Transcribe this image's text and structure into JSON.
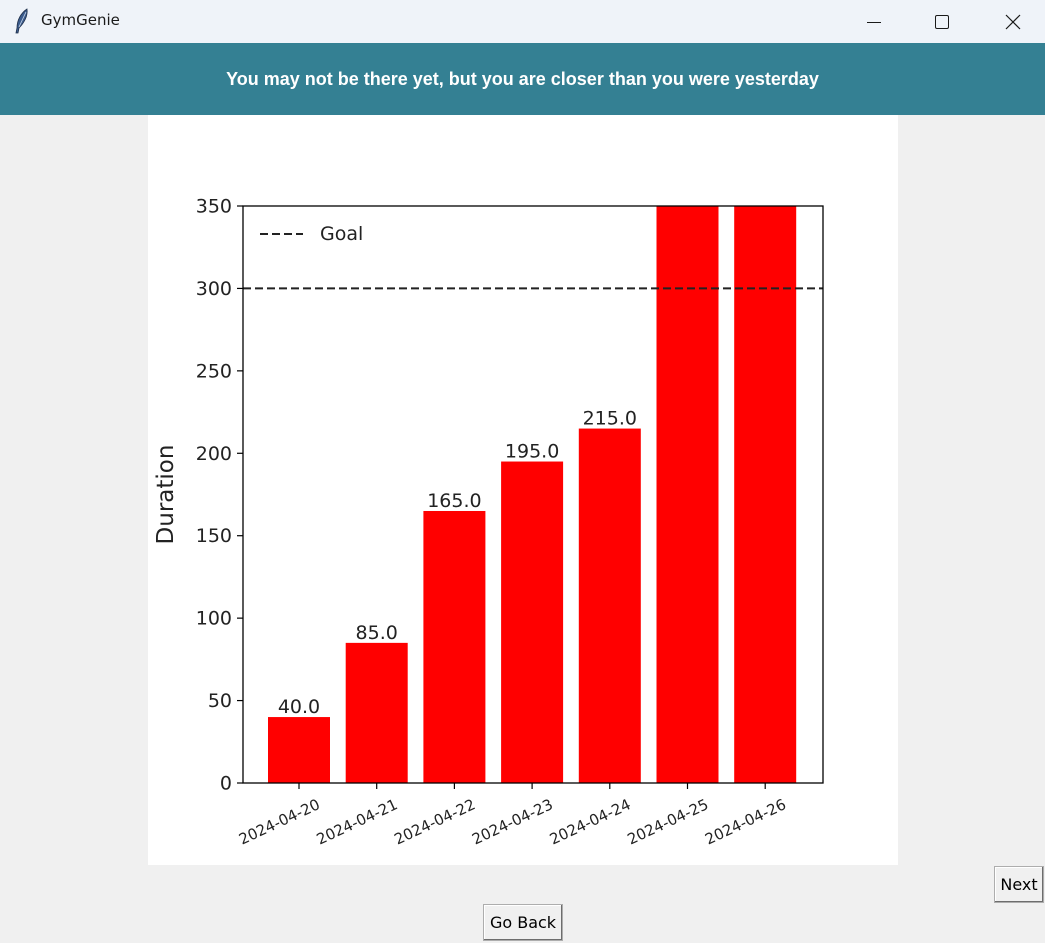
{
  "window": {
    "title": "GymGenie",
    "icon": "feather-icon",
    "controls": [
      "minimize-icon",
      "maximize-icon",
      "close-icon"
    ]
  },
  "banner": {
    "text": "You may not be there yet, but you are closer than you were yesterday",
    "background": "#348093"
  },
  "chart_data": {
    "type": "bar",
    "categories": [
      "2024-04-20",
      "2024-04-21",
      "2024-04-22",
      "2024-04-23",
      "2024-04-24",
      "2024-04-25",
      "2024-04-26"
    ],
    "values": [
      40.0,
      85.0,
      165.0,
      195.0,
      215.0,
      350,
      350
    ],
    "data_labels": [
      "40.0",
      "85.0",
      "165.0",
      "195.0",
      "215.0",
      "",
      ""
    ],
    "ylabel": "Duration",
    "xlabel": "",
    "ylim": [
      0,
      350
    ],
    "yticks": [
      0,
      50,
      100,
      150,
      200,
      250,
      300,
      350
    ],
    "bar_color": "#ff0000",
    "goal": {
      "label": "Goal",
      "value": 300,
      "style": "dashed"
    },
    "legend_position": "top-left",
    "grid": false
  },
  "buttons": {
    "next": "Next",
    "go_back": "Go Back"
  }
}
